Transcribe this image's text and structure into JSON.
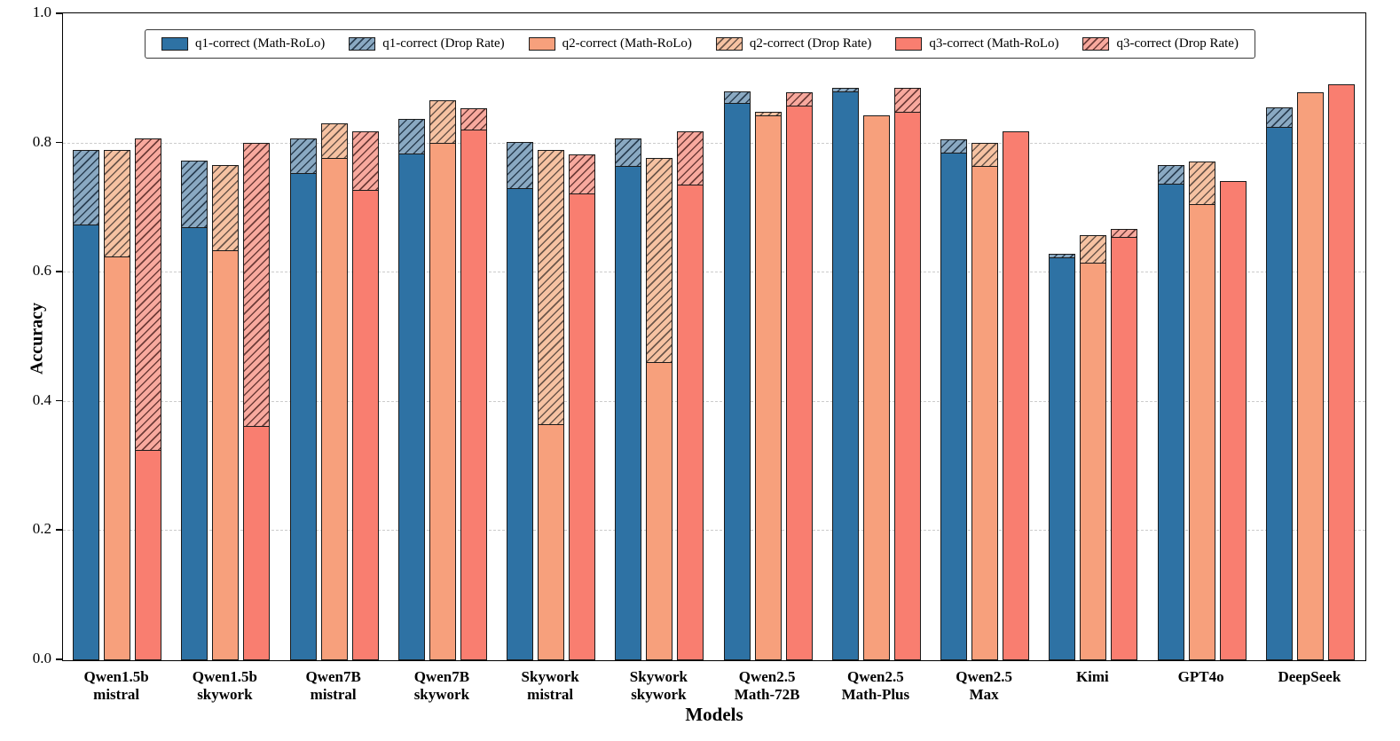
{
  "chart_data": {
    "type": "bar",
    "title": "",
    "xlabel": "Models",
    "ylabel": "Accuracy",
    "ylim": [
      0.0,
      1.0
    ],
    "yticks": [
      0.0,
      0.2,
      0.4,
      0.6,
      0.8,
      1.0
    ],
    "grid": "horizontal dashed",
    "legend_position": "top inside plot, horizontal",
    "categories": [
      "Qwen1.5b\nmistral",
      "Qwen1.5b\nskywork",
      "Qwen7B\nmistral",
      "Qwen7B\nskywork",
      "Skywork\nmistral",
      "Skywork\nskywork",
      "Qwen2.5\nMath-72B",
      "Qwen2.5\nMath-Plus",
      "Qwen2.5\nMax",
      "Kimi",
      "GPT4o",
      "DeepSeek"
    ],
    "series": [
      {
        "name": "q1-correct",
        "solid_label": "q1-correct (Math-RoLo)",
        "hatched_label": "q1-correct (Drop Rate)",
        "solid_color": "#2e72a4",
        "hatch_fill": "#8aa9c2",
        "hatch_line": "#2b3f52",
        "math_rolo": [
          0.675,
          0.67,
          0.754,
          0.784,
          0.731,
          0.765,
          0.862,
          0.88,
          0.786,
          0.623,
          0.738,
          0.826
        ],
        "total_with_drop": [
          0.79,
          0.773,
          0.808,
          0.838,
          0.803,
          0.808,
          0.88,
          0.886,
          0.807,
          0.628,
          0.767,
          0.856
        ]
      },
      {
        "name": "q2-correct",
        "solid_label": "q2-correct (Math-RoLo)",
        "hatched_label": "q2-correct (Drop Rate)",
        "solid_color": "#f7a07c",
        "hatch_fill": "#f6c2a2",
        "hatch_line": "#6b564a",
        "math_rolo": [
          0.625,
          0.635,
          0.778,
          0.801,
          0.366,
          0.462,
          0.843,
          0.843,
          0.765,
          0.615,
          0.706,
          0.879
        ],
        "total_with_drop": [
          0.79,
          0.767,
          0.831,
          0.867,
          0.79,
          0.778,
          0.849,
          0.843,
          0.801,
          0.658,
          0.772,
          0.879
        ]
      },
      {
        "name": "q3-correct",
        "solid_label": "q3-correct (Math-RoLo)",
        "hatched_label": "q3-correct (Drop Rate)",
        "solid_color": "#f97e70",
        "hatch_fill": "#f8a99e",
        "hatch_line": "#6e3c38",
        "math_rolo": [
          0.325,
          0.362,
          0.728,
          0.821,
          0.722,
          0.736,
          0.858,
          0.849,
          0.818,
          0.655,
          0.742,
          0.891
        ],
        "total_with_drop": [
          0.807,
          0.8,
          0.819,
          0.854,
          0.783,
          0.819,
          0.878,
          0.886,
          0.818,
          0.667,
          0.742,
          0.891
        ]
      }
    ],
    "legend_entries": [
      "q1-correct (Math-RoLo)",
      "q1-correct (Drop Rate)",
      "q2-correct (Math-RoLo)",
      "q2-correct (Drop Rate)",
      "q3-correct (Math-RoLo)",
      "q3-correct (Drop Rate)"
    ]
  }
}
